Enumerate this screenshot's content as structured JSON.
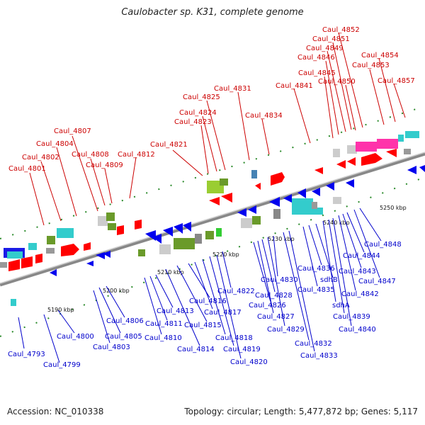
{
  "title": "Caulobacter sp. K31, complete genome",
  "footer": {
    "accession": "Accession: NC_010338",
    "summary": "Topology: circular; Length: 5,477,872 bp; Genes: 5,117"
  },
  "ticks": [
    "5190 kbp",
    "5200 kbp",
    "5210 kbp",
    "5220 kbp",
    "5230 kbp",
    "5240 kbp",
    "5250 kbp"
  ],
  "labels_top": [
    "Caul_4801",
    "Caul_4802",
    "Caul_4804",
    "Caul_4807",
    "Caul_4808",
    "Caul_4809",
    "Caul_4812",
    "Caul_4821",
    "Caul_4823",
    "Caul_4824",
    "Caul_4825",
    "Caul_4831",
    "Caul_4834",
    "Caul_4841",
    "Caul_4845",
    "Caul_4846",
    "Caul_4849",
    "Caul_4851",
    "Caul_4852",
    "Caul_4850",
    "Caul_4853",
    "Caul_4854",
    "Caul_4857"
  ],
  "labels_bottom": [
    "Caul_4793",
    "Caul_4799",
    "Caul_4800",
    "Caul_4803",
    "Caul_4805",
    "Caul_4806",
    "Caul_4810",
    "Caul_4811",
    "Caul_4813",
    "Caul_4814",
    "Caul_4815",
    "Caul_4816",
    "Caul_4817",
    "Caul_4818",
    "Caul_4819",
    "Caul_4820",
    "Caul_4822",
    "Caul_4826",
    "Caul_4827",
    "Caul_4828",
    "Caul_4829",
    "Caul_4830",
    "Caul_4832",
    "Caul_4833",
    "Caul_4835",
    "Caul_4836",
    "sdhB",
    "sdhA",
    "Caul_4839",
    "Caul_4840",
    "Caul_4842",
    "Caul_4843",
    "Caul_4844",
    "Caul_4847",
    "Caul_4848"
  ]
}
